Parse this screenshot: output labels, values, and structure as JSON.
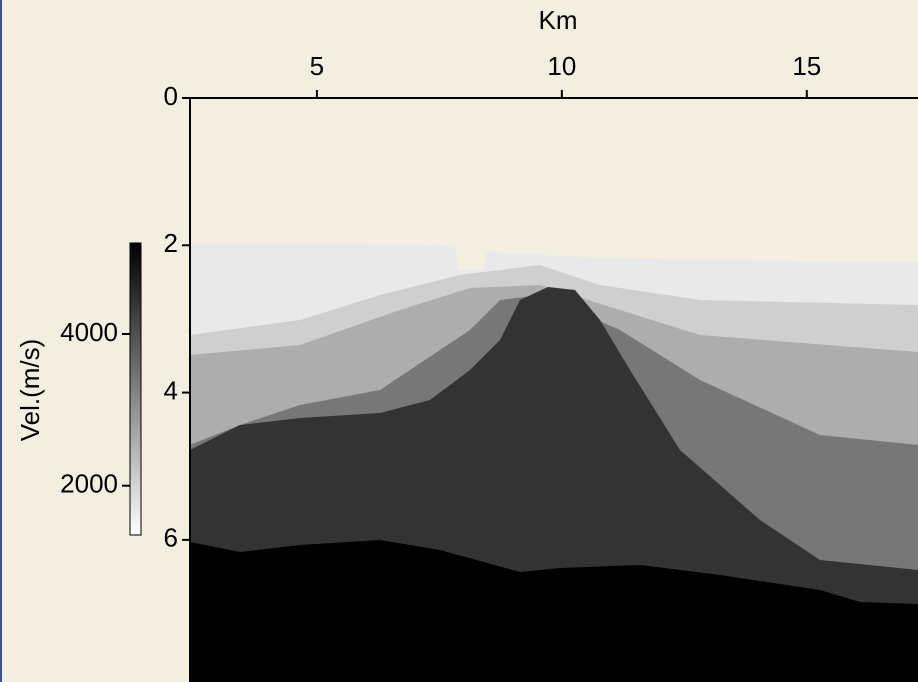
{
  "chart_data": {
    "type": "image",
    "xlabel": "Km",
    "xlim": [
      2.41,
      17.27
    ],
    "xticks": [
      5,
      10,
      15
    ],
    "ylim": [
      7.93,
      0
    ],
    "yticks": [
      0,
      2,
      4,
      6
    ],
    "colorbar": {
      "label": "Vel.(m/s)",
      "lim": [
        1350,
        5200
      ],
      "ticks": [
        2000,
        4000
      ]
    }
  }
}
